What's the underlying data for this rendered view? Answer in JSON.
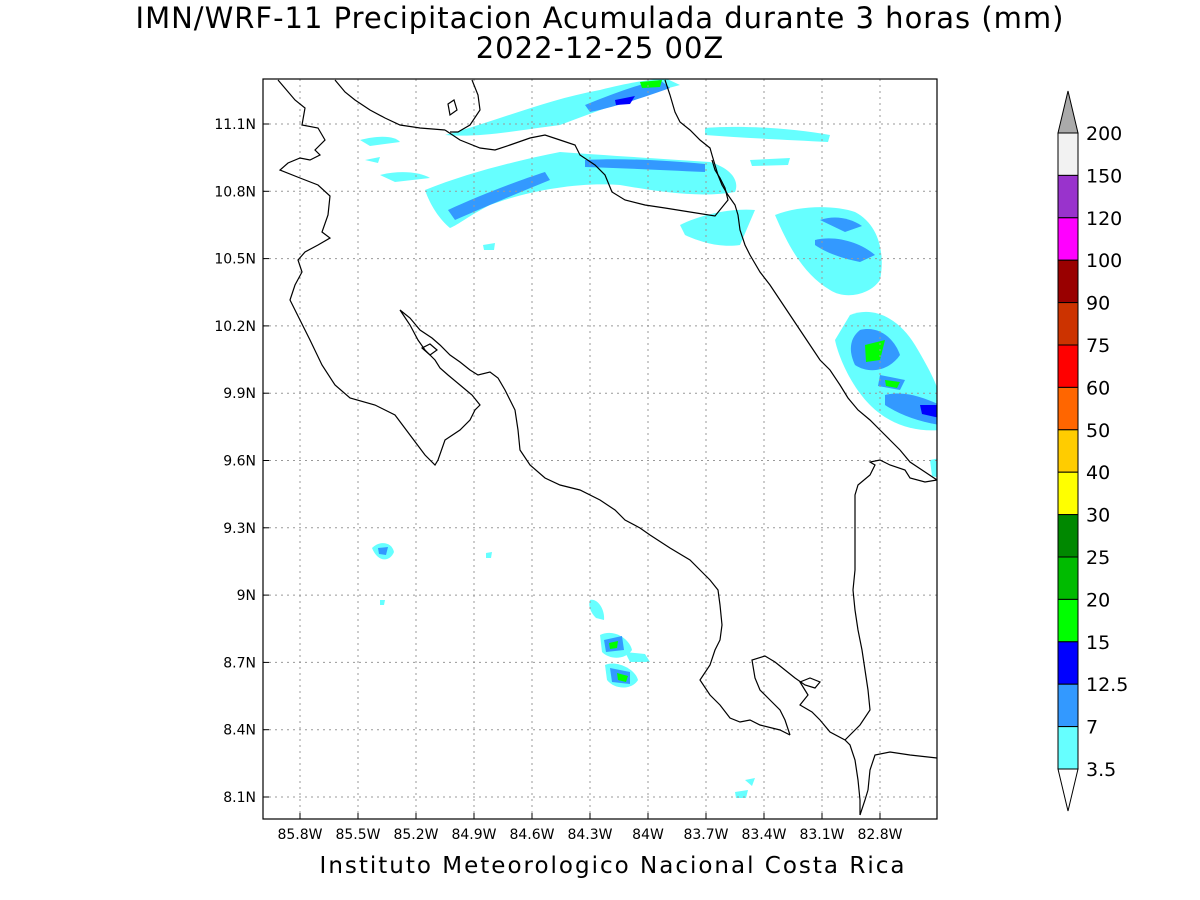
{
  "title": "IMN/WRF-11 Precipitacion Acumulada durante 3 horas (mm)",
  "subtitle": "2022-12-25 00Z",
  "credit": "Instituto Meteorologico Nacional Costa Rica",
  "map": {
    "lon_labels": [
      "85.8W",
      "85.5W",
      "85.2W",
      "84.9W",
      "84.6W",
      "84.3W",
      "84W",
      "83.7W",
      "83.4W",
      "83.1W",
      "82.8W"
    ],
    "lat_labels": [
      "11.1N",
      "10.8N",
      "10.5N",
      "10.2N",
      "9.9N",
      "9.6N",
      "9.3N",
      "9N",
      "8.7N",
      "8.4N",
      "8.1N"
    ],
    "grid": "dotted"
  },
  "colorbar": {
    "labels": [
      "200",
      "150",
      "120",
      "100",
      "90",
      "75",
      "60",
      "50",
      "40",
      "30",
      "25",
      "20",
      "15",
      "12.5",
      "7",
      "3.5"
    ],
    "colors": [
      "#f2f2f2",
      "#9933cc",
      "#ff00ff",
      "#990000",
      "#cc3300",
      "#ff0000",
      "#ff6600",
      "#ffcc00",
      "#ffff00",
      "#008800",
      "#00bb00",
      "#00ff00",
      "#0000ff",
      "#3399ff",
      "#66ffff"
    ],
    "over_color": "#aaaaaa",
    "under_color": "#ffffff"
  }
}
